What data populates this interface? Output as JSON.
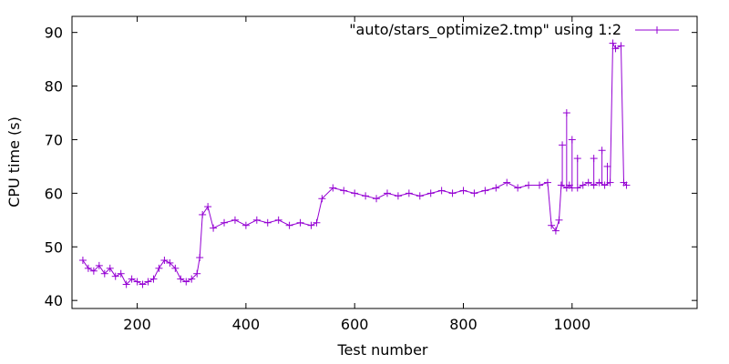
{
  "chart_data": {
    "type": "line",
    "title": "",
    "xlabel": "Test number",
    "ylabel": "CPU time (s)",
    "xlim": [
      80,
      1230
    ],
    "ylim": [
      38.5,
      93
    ],
    "xticks": [
      200,
      400,
      600,
      800,
      1000
    ],
    "yticks": [
      40,
      50,
      60,
      70,
      80,
      90
    ],
    "grid": false,
    "legend_position": "top-right",
    "marker": "plus",
    "colors": {
      "series": "#9400d3",
      "axis": "#000000",
      "background": "#ffffff"
    },
    "series": [
      {
        "name": "\"auto/stars_optimize2.tmp\" using 1:2",
        "points": [
          [
            100,
            47.5
          ],
          [
            110,
            46.0
          ],
          [
            120,
            45.5
          ],
          [
            130,
            46.5
          ],
          [
            140,
            45.0
          ],
          [
            150,
            46.0
          ],
          [
            160,
            44.5
          ],
          [
            170,
            45.0
          ],
          [
            180,
            43.0
          ],
          [
            190,
            44.0
          ],
          [
            200,
            43.5
          ],
          [
            210,
            43.0
          ],
          [
            220,
            43.5
          ],
          [
            230,
            44.0
          ],
          [
            240,
            46.0
          ],
          [
            250,
            47.5
          ],
          [
            260,
            47.0
          ],
          [
            270,
            46.0
          ],
          [
            280,
            44.0
          ],
          [
            290,
            43.5
          ],
          [
            300,
            44.0
          ],
          [
            310,
            45.0
          ],
          [
            315,
            48.0
          ],
          [
            320,
            56.0
          ],
          [
            330,
            57.5
          ],
          [
            340,
            53.5
          ],
          [
            360,
            54.5
          ],
          [
            380,
            55.0
          ],
          [
            400,
            54.0
          ],
          [
            420,
            55.0
          ],
          [
            440,
            54.5
          ],
          [
            460,
            55.0
          ],
          [
            480,
            54.0
          ],
          [
            500,
            54.5
          ],
          [
            520,
            54.0
          ],
          [
            530,
            54.5
          ],
          [
            540,
            59.0
          ],
          [
            560,
            61.0
          ],
          [
            580,
            60.5
          ],
          [
            600,
            60.0
          ],
          [
            620,
            59.5
          ],
          [
            640,
            59.0
          ],
          [
            660,
            60.0
          ],
          [
            680,
            59.5
          ],
          [
            700,
            60.0
          ],
          [
            720,
            59.5
          ],
          [
            740,
            60.0
          ],
          [
            760,
            60.5
          ],
          [
            780,
            60.0
          ],
          [
            800,
            60.5
          ],
          [
            820,
            60.0
          ],
          [
            840,
            60.5
          ],
          [
            860,
            61.0
          ],
          [
            880,
            62.0
          ],
          [
            900,
            61.0
          ],
          [
            920,
            61.5
          ],
          [
            940,
            61.5
          ],
          [
            955,
            62.0
          ],
          [
            962,
            54.0
          ],
          [
            970,
            53.0
          ],
          [
            976,
            55.0
          ],
          [
            980,
            61.5
          ],
          [
            990,
            61.0
          ],
          [
            995,
            61.5
          ],
          [
            1000,
            61.0
          ],
          [
            1010,
            61.0
          ],
          [
            1020,
            61.5
          ],
          [
            1030,
            62.0
          ],
          [
            1040,
            61.5
          ],
          [
            1050,
            62.0
          ],
          [
            1060,
            61.5
          ],
          [
            1070,
            62.0
          ],
          [
            1075,
            88.0
          ],
          [
            1080,
            87.0
          ],
          [
            1090,
            87.5
          ],
          [
            1095,
            62.0
          ],
          [
            1100,
            61.5
          ]
        ],
        "spikes": [
          [
            982,
            69.0
          ],
          [
            990,
            75.0
          ],
          [
            1000,
            70.0
          ],
          [
            1010,
            66.5
          ],
          [
            1040,
            66.5
          ],
          [
            1055,
            68.0
          ],
          [
            1065,
            65.0
          ]
        ]
      }
    ]
  }
}
